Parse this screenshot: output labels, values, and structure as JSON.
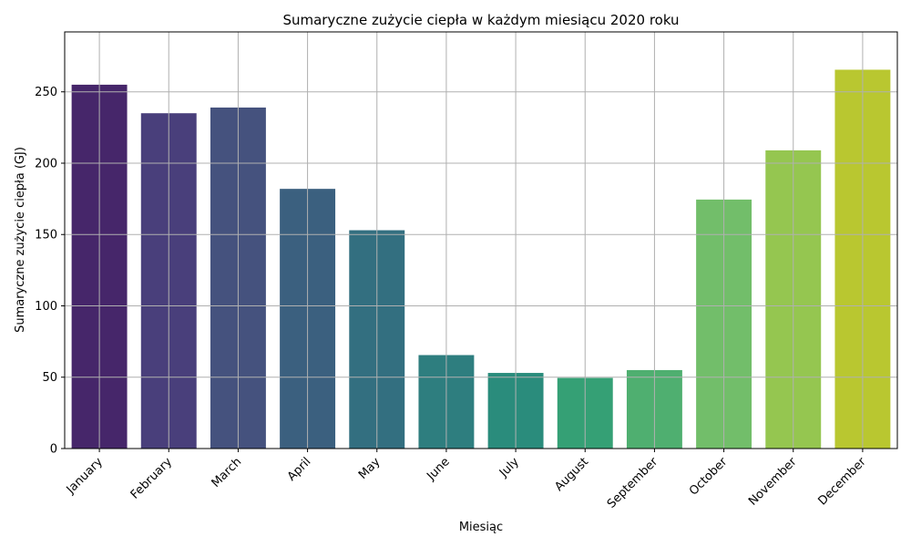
{
  "chart_data": {
    "type": "bar",
    "title": "Sumaryczne zużycie ciepła w każdym miesiącu 2020 roku",
    "xlabel": "Miesiąc",
    "ylabel": "Sumaryczne zużycie ciepła (GJ)",
    "categories": [
      "January",
      "February",
      "March",
      "April",
      "May",
      "June",
      "July",
      "August",
      "September",
      "October",
      "November",
      "December"
    ],
    "values": [
      255,
      235,
      239,
      182,
      153,
      65.5,
      53,
      49.5,
      55,
      174.5,
      209,
      265.5
    ],
    "ylim": [
      0,
      292
    ],
    "yticks": [
      0,
      50,
      100,
      150,
      200,
      250
    ],
    "grid": true,
    "colors": [
      "#46266a",
      "#493f7b",
      "#45527e",
      "#3b607f",
      "#336f80",
      "#2e7e7f",
      "#2a8c7c",
      "#35a075",
      "#4faf70",
      "#72be6a",
      "#95c650",
      "#b9c730"
    ]
  }
}
